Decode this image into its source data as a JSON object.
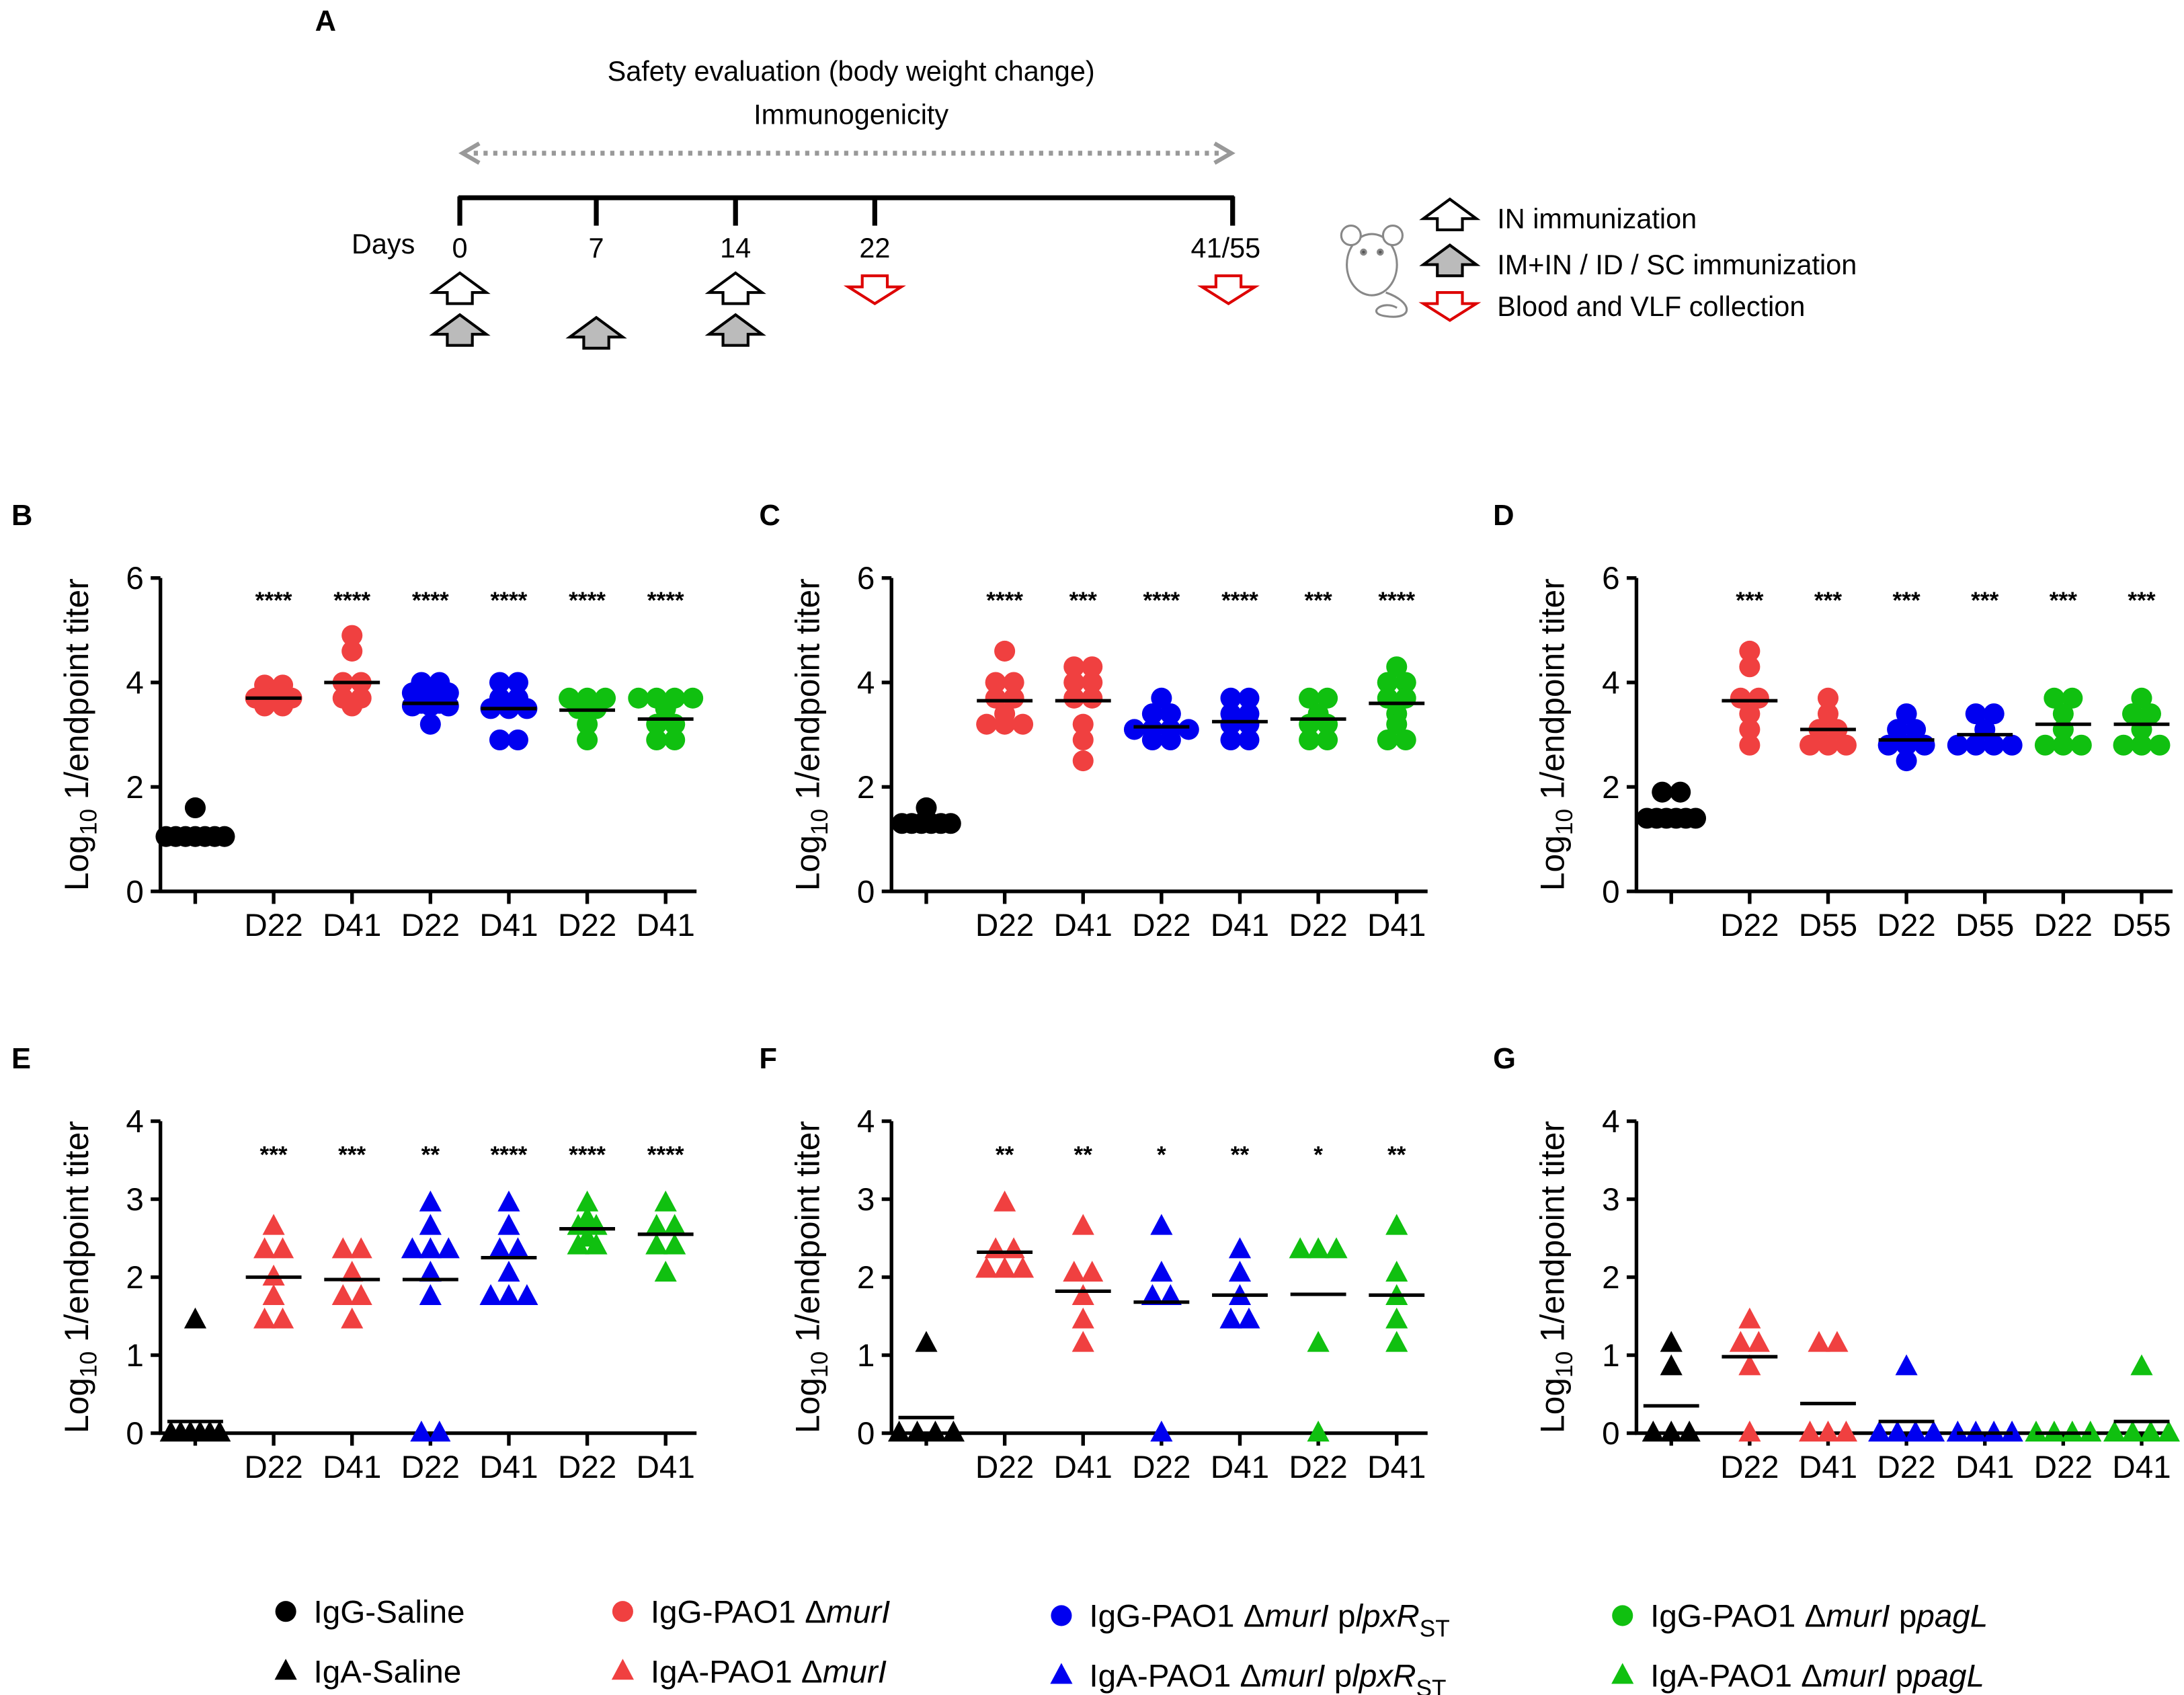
{
  "panel_a": {
    "label": "A",
    "title_line1": "Safety evaluation (body weight change)",
    "title_line2": "Immunogenicity",
    "days_label": "Days",
    "days": [
      "0",
      "7",
      "14",
      "22",
      "41/55"
    ],
    "legend": [
      "IN immunization",
      "IM+IN / ID / SC  immunization",
      "Blood and VLF collection"
    ]
  },
  "colors": {
    "saline": "#000000",
    "murI": "#f04040",
    "lpxR": "#0000f0",
    "pagL": "#10c010"
  },
  "chart_data": [
    {
      "panel": "B",
      "type": "scatter",
      "marker": "circle",
      "ylabel": "Log10 1/endpoint titer",
      "ylim": [
        0,
        6
      ],
      "yticks": [
        0,
        2,
        4,
        6
      ],
      "groups": [
        {
          "label": "",
          "color": "saline",
          "points": [
            1.6,
            1.05,
            1.05,
            1.05,
            1.05,
            1.05,
            1.05,
            1.05
          ],
          "median": 1.05,
          "sig": ""
        },
        {
          "label": "D22",
          "color": "murI",
          "points": [
            3.95,
            3.95,
            3.7,
            3.7,
            3.7,
            3.55,
            3.55
          ],
          "median": 3.7,
          "sig": "****"
        },
        {
          "label": "D41",
          "color": "murI",
          "points": [
            4.9,
            4.6,
            4.0,
            4.0,
            3.7,
            3.7,
            3.55
          ],
          "median": 4.0,
          "sig": "****"
        },
        {
          "label": "D22",
          "color": "lpxR",
          "points": [
            4.0,
            4.0,
            3.8,
            3.8,
            3.8,
            3.6,
            3.6,
            3.55,
            3.55,
            3.55,
            3.2
          ],
          "median": 3.6,
          "sig": "****"
        },
        {
          "label": "D41",
          "color": "lpxR",
          "points": [
            4.0,
            4.0,
            3.7,
            3.7,
            3.5,
            3.5,
            3.5,
            2.9,
            2.9
          ],
          "median": 3.5,
          "sig": "****"
        },
        {
          "label": "D22",
          "color": "pagL",
          "points": [
            3.7,
            3.7,
            3.7,
            3.5,
            3.5,
            3.2,
            2.9
          ],
          "median": 3.47,
          "sig": "****"
        },
        {
          "label": "D41",
          "color": "pagL",
          "points": [
            3.7,
            3.7,
            3.7,
            3.7,
            3.5,
            3.2,
            3.2,
            2.9,
            2.9
          ],
          "median": 3.3,
          "sig": "****"
        }
      ]
    },
    {
      "panel": "C",
      "type": "scatter",
      "marker": "circle",
      "ylabel": "Log10 1/endpoint titer",
      "ylim": [
        0,
        6
      ],
      "yticks": [
        0,
        2,
        4,
        6
      ],
      "groups": [
        {
          "label": "",
          "color": "saline",
          "points": [
            1.6,
            1.3,
            1.3,
            1.3,
            1.3,
            1.3,
            1.3
          ],
          "median": 1.35,
          "sig": ""
        },
        {
          "label": "D22",
          "color": "murI",
          "points": [
            4.6,
            4.0,
            4.0,
            3.7,
            3.7,
            3.4,
            3.2,
            3.2,
            3.2
          ],
          "median": 3.65,
          "sig": "****"
        },
        {
          "label": "D41",
          "color": "murI",
          "points": [
            4.3,
            4.3,
            4.0,
            4.0,
            3.7,
            3.7,
            3.2,
            2.9,
            2.5
          ],
          "median": 3.65,
          "sig": "***"
        },
        {
          "label": "D22",
          "color": "lpxR",
          "points": [
            3.7,
            3.4,
            3.4,
            3.1,
            3.1,
            3.1,
            3.1,
            2.9,
            2.9
          ],
          "median": 3.15,
          "sig": "****"
        },
        {
          "label": "D41",
          "color": "lpxR",
          "points": [
            3.7,
            3.7,
            3.4,
            3.4,
            3.2,
            3.2,
            2.9,
            2.9
          ],
          "median": 3.25,
          "sig": "****"
        },
        {
          "label": "D22",
          "color": "pagL",
          "points": [
            3.7,
            3.7,
            3.4,
            3.2,
            3.2,
            2.9,
            2.9
          ],
          "median": 3.3,
          "sig": "***"
        },
        {
          "label": "D41",
          "color": "pagL",
          "points": [
            4.3,
            4.0,
            4.0,
            3.7,
            3.7,
            3.4,
            3.2,
            2.9,
            2.9
          ],
          "median": 3.6,
          "sig": "****"
        }
      ]
    },
    {
      "panel": "D",
      "type": "scatter",
      "marker": "circle",
      "ylabel": "Log10 1/endpoint titer",
      "ylim": [
        0,
        6
      ],
      "yticks": [
        0,
        2,
        4,
        6
      ],
      "groups": [
        {
          "label": "",
          "color": "saline",
          "points": [
            1.9,
            1.9,
            1.4,
            1.4,
            1.4,
            1.4,
            1.4,
            1.4
          ],
          "median": 1.47,
          "sig": ""
        },
        {
          "label": "D22",
          "color": "murI",
          "points": [
            4.6,
            4.3,
            3.7,
            3.7,
            3.4,
            3.1,
            2.8
          ],
          "median": 3.65,
          "sig": "***"
        },
        {
          "label": "D55",
          "color": "murI",
          "points": [
            3.7,
            3.4,
            3.1,
            3.1,
            2.8,
            2.8,
            2.8
          ],
          "median": 3.1,
          "sig": "***"
        },
        {
          "label": "D22",
          "color": "lpxR",
          "points": [
            3.4,
            3.1,
            3.1,
            2.8,
            2.8,
            2.8,
            2.5
          ],
          "median": 2.9,
          "sig": "***"
        },
        {
          "label": "D55",
          "color": "lpxR",
          "points": [
            3.4,
            3.4,
            3.1,
            2.8,
            2.8,
            2.8,
            2.8
          ],
          "median": 3.0,
          "sig": "***"
        },
        {
          "label": "D22",
          "color": "pagL",
          "points": [
            3.7,
            3.7,
            3.4,
            3.1,
            2.8,
            2.8,
            2.8
          ],
          "median": 3.2,
          "sig": "***"
        },
        {
          "label": "D55",
          "color": "pagL",
          "points": [
            3.7,
            3.4,
            3.4,
            3.1,
            2.8,
            2.8,
            2.8
          ],
          "median": 3.2,
          "sig": "***"
        }
      ]
    },
    {
      "panel": "E",
      "type": "scatter",
      "marker": "triangle",
      "ylabel": "Log10 1/endpoint titer",
      "ylim": [
        0,
        4
      ],
      "yticks": [
        0,
        1,
        2,
        3,
        4
      ],
      "groups": [
        {
          "label": "",
          "color": "saline",
          "points": [
            1.45,
            0,
            0,
            0,
            0,
            0,
            0
          ],
          "median": 0.15,
          "sig": ""
        },
        {
          "label": "D22",
          "color": "murI",
          "points": [
            2.65,
            2.35,
            2.35,
            2.0,
            1.75,
            1.45,
            1.45
          ],
          "median": 2.0,
          "sig": "***"
        },
        {
          "label": "D41",
          "color": "murI",
          "points": [
            2.35,
            2.35,
            2.05,
            1.75,
            1.75,
            1.45
          ],
          "median": 1.97,
          "sig": "***"
        },
        {
          "label": "D22",
          "color": "lpxR",
          "points": [
            2.95,
            2.65,
            2.35,
            2.35,
            2.35,
            2.05,
            1.75,
            0,
            0
          ],
          "median": 1.97,
          "sig": "**"
        },
        {
          "label": "D41",
          "color": "lpxR",
          "points": [
            2.95,
            2.65,
            2.35,
            2.35,
            2.05,
            1.75,
            1.75,
            1.75
          ],
          "median": 2.25,
          "sig": "****"
        },
        {
          "label": "D22",
          "color": "pagL",
          "points": [
            2.95,
            2.75,
            2.65,
            2.65,
            2.5,
            2.4,
            2.4
          ],
          "median": 2.62,
          "sig": "****"
        },
        {
          "label": "D41",
          "color": "pagL",
          "points": [
            2.95,
            2.65,
            2.65,
            2.4,
            2.4,
            2.05
          ],
          "median": 2.55,
          "sig": "****"
        }
      ]
    },
    {
      "panel": "F",
      "type": "scatter",
      "marker": "triangle",
      "ylabel": "Log10 1/endpoint titer",
      "ylim": [
        0,
        4
      ],
      "yticks": [
        0,
        1,
        2,
        3,
        4
      ],
      "groups": [
        {
          "label": "",
          "color": "saline",
          "points": [
            1.15,
            0,
            0,
            0,
            0
          ],
          "median": 0.2,
          "sig": ""
        },
        {
          "label": "D22",
          "color": "murI",
          "points": [
            2.95,
            2.35,
            2.35,
            2.1,
            2.1,
            2.1
          ],
          "median": 2.32,
          "sig": "**"
        },
        {
          "label": "D41",
          "color": "murI",
          "points": [
            2.65,
            2.05,
            2.05,
            1.75,
            1.45,
            1.15
          ],
          "median": 1.82,
          "sig": "**"
        },
        {
          "label": "D22",
          "color": "lpxR",
          "points": [
            2.65,
            2.05,
            1.75,
            1.75,
            0
          ],
          "median": 1.68,
          "sig": "*"
        },
        {
          "label": "D41",
          "color": "lpxR",
          "points": [
            2.35,
            2.05,
            1.75,
            1.45,
            1.45
          ],
          "median": 1.77,
          "sig": "**"
        },
        {
          "label": "D22",
          "color": "pagL",
          "points": [
            2.35,
            2.35,
            2.35,
            1.15,
            0
          ],
          "median": 1.78,
          "sig": "*"
        },
        {
          "label": "D41",
          "color": "pagL",
          "points": [
            2.65,
            2.05,
            1.75,
            1.45,
            1.15
          ],
          "median": 1.77,
          "sig": "**"
        }
      ]
    },
    {
      "panel": "G",
      "type": "scatter",
      "marker": "triangle",
      "ylabel": "Log10 1/endpoint titer",
      "ylim": [
        0,
        4
      ],
      "yticks": [
        0,
        1,
        2,
        3,
        4
      ],
      "groups": [
        {
          "label": "",
          "color": "saline",
          "points": [
            1.15,
            0.85,
            0,
            0,
            0
          ],
          "median": 0.35,
          "sig": ""
        },
        {
          "label": "D22",
          "color": "murI",
          "points": [
            1.45,
            1.15,
            1.15,
            0.85,
            0
          ],
          "median": 0.98,
          "sig": ""
        },
        {
          "label": "D41",
          "color": "murI",
          "points": [
            1.15,
            1.15,
            0,
            0,
            0
          ],
          "median": 0.38,
          "sig": ""
        },
        {
          "label": "D22",
          "color": "lpxR",
          "points": [
            0.85,
            0,
            0,
            0,
            0
          ],
          "median": 0.15,
          "sig": ""
        },
        {
          "label": "D41",
          "color": "lpxR",
          "points": [
            0,
            0,
            0,
            0
          ],
          "median": 0,
          "sig": ""
        },
        {
          "label": "D22",
          "color": "pagL",
          "points": [
            0,
            0,
            0,
            0
          ],
          "median": 0,
          "sig": ""
        },
        {
          "label": "D41",
          "color": "pagL",
          "points": [
            0.85,
            0,
            0,
            0,
            0
          ],
          "median": 0.15,
          "sig": ""
        }
      ]
    }
  ],
  "legend": [
    {
      "marker": "circle",
      "color": "saline",
      "segments": [
        {
          "t": "IgG-Saline"
        }
      ]
    },
    {
      "marker": "triangle",
      "color": "saline",
      "segments": [
        {
          "t": "IgA-Saline"
        }
      ]
    },
    {
      "marker": "circle",
      "color": "murI",
      "segments": [
        {
          "t": "IgG-PAO1 Δ"
        },
        {
          "t": "murI",
          "i": true
        }
      ]
    },
    {
      "marker": "triangle",
      "color": "murI",
      "segments": [
        {
          "t": "IgA-PAO1 Δ"
        },
        {
          "t": "murI",
          "i": true
        }
      ]
    },
    {
      "marker": "circle",
      "color": "lpxR",
      "segments": [
        {
          "t": "IgG-PAO1 Δ"
        },
        {
          "t": "murI",
          "i": true
        },
        {
          "t": " p"
        },
        {
          "t": "lpxR",
          "i": true
        },
        {
          "t": "ST",
          "sub": true
        }
      ]
    },
    {
      "marker": "triangle",
      "color": "lpxR",
      "segments": [
        {
          "t": "IgA-PAO1 Δ"
        },
        {
          "t": "murI",
          "i": true
        },
        {
          "t": " p"
        },
        {
          "t": "lpxR",
          "i": true
        },
        {
          "t": "ST",
          "sub": true
        }
      ]
    },
    {
      "marker": "circle",
      "color": "pagL",
      "segments": [
        {
          "t": "IgG-PAO1 Δ"
        },
        {
          "t": "murI",
          "i": true
        },
        {
          "t": " p"
        },
        {
          "t": "pagL",
          "i": true
        }
      ]
    },
    {
      "marker": "triangle",
      "color": "pagL",
      "segments": [
        {
          "t": "IgA-PAO1 Δ"
        },
        {
          "t": "murI",
          "i": true
        },
        {
          "t": " p"
        },
        {
          "t": "pagL",
          "i": true
        }
      ]
    }
  ]
}
